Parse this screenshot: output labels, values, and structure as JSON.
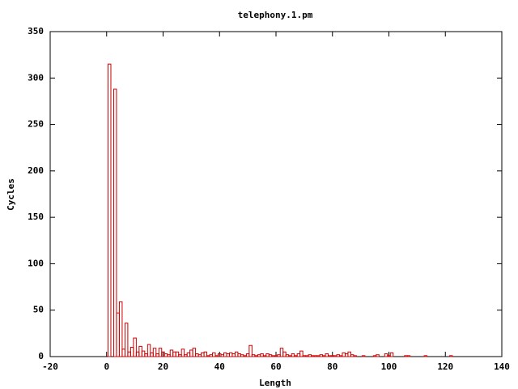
{
  "chart_data": {
    "type": "bar",
    "title": "telephony.1.pm",
    "x_label": "Length",
    "y_label": "Cycles",
    "color": "#cc0000",
    "x": [
      1,
      3,
      4,
      5,
      6,
      7,
      8,
      9,
      10,
      11,
      12,
      13,
      14,
      15,
      16,
      17,
      18,
      19,
      20,
      21,
      22,
      23,
      24,
      25,
      26,
      27,
      28,
      29,
      30,
      31,
      32,
      33,
      34,
      35,
      36,
      37,
      38,
      39,
      40,
      41,
      42,
      43,
      44,
      45,
      46,
      47,
      48,
      49,
      50,
      51,
      52,
      53,
      54,
      55,
      56,
      57,
      58,
      59,
      60,
      61,
      62,
      63,
      64,
      65,
      66,
      67,
      68,
      69,
      70,
      71,
      72,
      73,
      74,
      75,
      76,
      77,
      78,
      79,
      80,
      81,
      82,
      83,
      84,
      85,
      86,
      87,
      88,
      91,
      95,
      96,
      99,
      100,
      101,
      106,
      107,
      113,
      122
    ],
    "values": [
      315,
      288,
      47,
      59,
      8,
      36,
      5,
      10,
      20,
      5,
      11,
      6,
      3,
      13,
      4,
      9,
      3,
      9,
      5,
      3,
      2,
      7,
      5,
      5,
      2,
      8,
      2,
      4,
      7,
      9,
      3,
      2,
      4,
      5,
      1,
      2,
      4,
      1,
      3,
      2,
      4,
      3,
      4,
      3,
      5,
      3,
      2,
      1,
      3,
      12,
      2,
      1,
      2,
      3,
      1,
      3,
      2,
      1,
      1,
      2,
      9,
      5,
      2,
      1,
      3,
      1,
      3,
      6,
      1,
      1,
      2,
      1,
      1,
      1,
      2,
      1,
      3,
      1,
      1,
      1,
      2,
      1,
      4,
      3,
      5,
      2,
      1,
      1,
      1,
      2,
      3,
      1,
      4,
      1,
      1,
      1,
      1
    ],
    "xlim": [
      -20,
      140
    ],
    "xticks": [
      -20,
      0,
      20,
      40,
      60,
      80,
      100,
      120,
      140
    ],
    "ylim": [
      0,
      350
    ],
    "yticks": [
      0,
      50,
      100,
      150,
      200,
      250,
      300,
      350
    ]
  }
}
